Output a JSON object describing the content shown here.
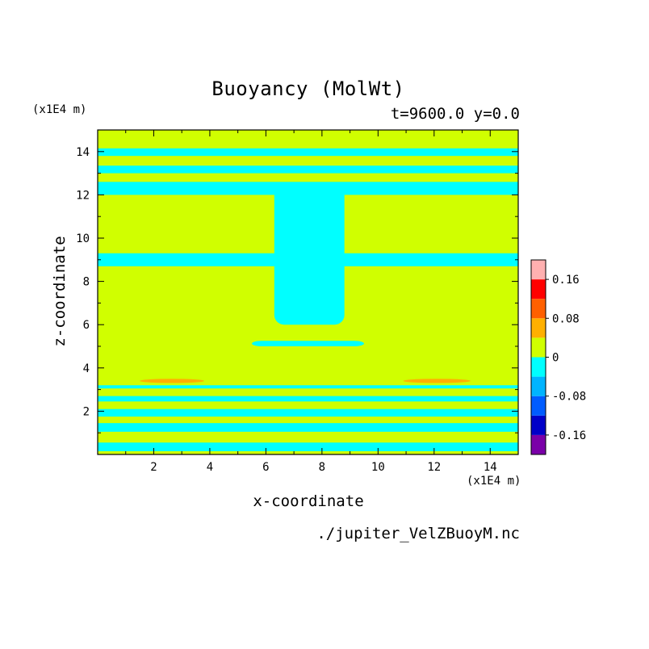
{
  "chart_data": {
    "type": "heatmap",
    "title": "Buoyancy (MolWt)",
    "subtitle": "t=9600.0 y=0.0",
    "xlabel": "x-coordinate",
    "ylabel": "z-coordinate",
    "x_unit": "(x1E4 m)",
    "y_unit": "(x1E4 m)",
    "xlim": [
      0,
      15
    ],
    "ylim": [
      0,
      15
    ],
    "x_ticks": [
      2,
      4,
      6,
      8,
      10,
      12,
      14
    ],
    "x_tick_labels": [
      "2",
      "4",
      "6",
      "8",
      "10",
      "12",
      "14"
    ],
    "y_ticks": [
      2,
      4,
      6,
      8,
      10,
      12,
      14
    ],
    "y_tick_labels": [
      "2",
      "4",
      "6",
      "8",
      "10",
      "12",
      "14"
    ],
    "colorbar": {
      "levels": [
        -0.2,
        -0.16,
        -0.12,
        -0.08,
        -0.04,
        0,
        0.04,
        0.08,
        0.12,
        0.16,
        0.2
      ],
      "colors": [
        "#7a00a8",
        "#0000c8",
        "#005cff",
        "#00b4ff",
        "#00ffff",
        "#d0ff00",
        "#ffb000",
        "#ff6000",
        "#ff0000",
        "#ffb0b0"
      ],
      "tick_values": [
        -0.16,
        -0.08,
        0,
        0.08,
        0.16
      ],
      "tick_labels": [
        "-0.16",
        "-0.08",
        "0",
        "0.08",
        "0.16"
      ]
    },
    "background_level": 0,
    "negative_bands": [
      {
        "z": [
          0.15,
          0.55
        ],
        "x": [
          0,
          15
        ]
      },
      {
        "z": [
          1.05,
          1.45
        ],
        "x": [
          0,
          15
        ]
      },
      {
        "z": [
          1.75,
          2.1
        ],
        "x": [
          0,
          15
        ]
      },
      {
        "z": [
          2.45,
          2.7
        ],
        "x": [
          0,
          15
        ]
      },
      {
        "z": [
          3.05,
          3.2
        ],
        "x": [
          0,
          15
        ]
      },
      {
        "z": [
          5.0,
          5.25
        ],
        "x": [
          5.5,
          9.5
        ]
      },
      {
        "z": [
          8.7,
          9.3
        ],
        "x": [
          0,
          15
        ]
      },
      {
        "z": [
          12.0,
          12.6
        ],
        "x": [
          0,
          15
        ]
      },
      {
        "z": [
          13.0,
          13.35
        ],
        "x": [
          0,
          15
        ]
      },
      {
        "z": [
          13.8,
          14.15
        ],
        "x": [
          0,
          15
        ]
      },
      {
        "z": [
          6.0,
          12.5
        ],
        "x": [
          6.3,
          8.8
        ]
      }
    ],
    "positive_patches": [
      {
        "x": [
          1.5,
          3.8
        ],
        "z": [
          3.3,
          3.5
        ],
        "value": 0.06
      },
      {
        "x": [
          10.9,
          13.3
        ],
        "z": [
          3.3,
          3.5
        ],
        "value": 0.06
      }
    ],
    "source": "./jupiter_VelZBuoyM.nc"
  }
}
